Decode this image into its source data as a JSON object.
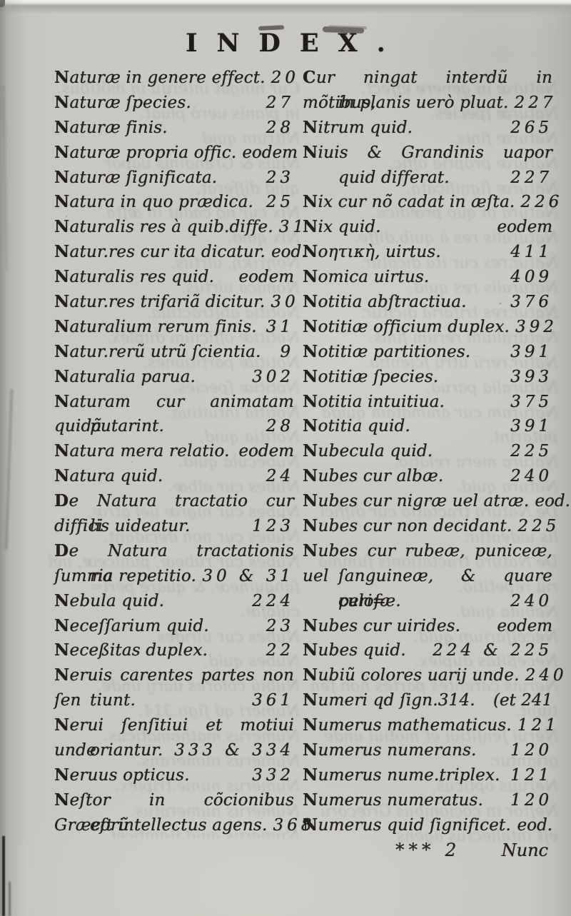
{
  "page": {
    "header": "INDEX.",
    "signature": "*** 2",
    "catchword": "Nunc",
    "colors": {
      "paper": "#c8c7c1",
      "ink": "#24211c"
    },
    "columns": {
      "left": {
        "lines": [
          {
            "text": "Naturæ in genere effect.",
            "page": "20"
          },
          {
            "text": "Naturæ ſpecies.",
            "page": "27"
          },
          {
            "text": "Naturæ finis.",
            "page": "28"
          },
          {
            "text": "Naturæ propria offic.",
            "page": "eodem"
          },
          {
            "text": "Naturæ ſignificata.",
            "page": "23"
          },
          {
            "text": "Natura in quo prædica.",
            "page": "25"
          },
          {
            "text": "Naturalis res à quib.diffe.",
            "page": "31"
          },
          {
            "text": "Natur.res cur ita dicatur.",
            "page": "eod."
          },
          {
            "text": "Naturalis res quid.",
            "page": "eodem"
          },
          {
            "text": "Natur.res trifariã dicitur.",
            "page": "30"
          },
          {
            "text": "Naturalium rerum finis.",
            "page": "31"
          },
          {
            "text": "Natur.rerũ utrũ ſcientia.",
            "page": "9"
          },
          {
            "text": "Naturalia parua.",
            "page": "302"
          },
          {
            "text": "Naturam cur animatam quidã",
            "page": "",
            "justify": true
          },
          {
            "text": "putarint.",
            "page": "28",
            "indent": true
          },
          {
            "text": "Natura mera relatio.",
            "page": "eodem"
          },
          {
            "text": "Natura quid.",
            "page": "24"
          },
          {
            "text": "De Natura tractatio cur diffici",
            "page": "",
            "justify": true
          },
          {
            "text": "lis uideatur.",
            "page": "123",
            "indent": true
          },
          {
            "text": "De Natura tractationis ſumma",
            "page": "",
            "justify": true
          },
          {
            "text": "ria repetitio.",
            "page": "30 & 31",
            "indent": true
          },
          {
            "text": "Nebula quid.",
            "page": "224"
          },
          {
            "text": "Neceſſarium quid.",
            "page": "23"
          },
          {
            "text": "Neceßitas duplex.",
            "page": "22"
          },
          {
            "text": "Neruis carentes partes non ſen",
            "page": "",
            "justify": true
          },
          {
            "text": "tiunt.",
            "page": "361",
            "indent": true
          },
          {
            "text": "Nerui ſenſitiui et motiui unde",
            "page": "",
            "justify": true
          },
          {
            "text": "oriantur.",
            "page": "333 & 334",
            "indent": true
          },
          {
            "text": "Neruus opticus.",
            "page": "332"
          },
          {
            "text": "Neſtor in cõcionibus Græcorũ",
            "page": "",
            "justify": true
          },
          {
            "text": "eſt intellectus agens.",
            "page": "368",
            "indent": true
          }
        ]
      },
      "right": {
        "lines": [
          {
            "text": "Cur ningat interdũ in mõtibus,",
            "page": "",
            "justify": true
          },
          {
            "text": "in planis uerò pluat.",
            "page": "227",
            "indent": true
          },
          {
            "text": "Nitrum quid.",
            "page": "265"
          },
          {
            "text": "Niuis & Grandinis uapor",
            "page": "",
            "justify": true
          },
          {
            "text": "quid differat.",
            "page": "227",
            "indent": true
          },
          {
            "text": "Nix cur nõ cadat in æſta.",
            "page": "226"
          },
          {
            "text": "Nix quid.",
            "page": "eodem"
          },
          {
            "text": "Νοητικὴ, uirtus.",
            "page": "411"
          },
          {
            "text": "Nomica uirtus.",
            "page": "409"
          },
          {
            "text": "Notitia abſtractiua.",
            "page": "376"
          },
          {
            "text": "Notitiæ officium duplex.",
            "page": "392"
          },
          {
            "text": "Notitiæ partitiones.",
            "page": "391"
          },
          {
            "text": "Notitiæ ſpecies.",
            "page": "393"
          },
          {
            "text": "Notitia intuitiua.",
            "page": "375"
          },
          {
            "text": "Notitia quid.",
            "page": "391"
          },
          {
            "text": "Nubecula quid.",
            "page": "225"
          },
          {
            "text": "Nubes cur albæ.",
            "page": "240"
          },
          {
            "text": "Nubes cur nigræ uel atræ.",
            "page": "eod."
          },
          {
            "text": "Nubes cur non decidant.",
            "page": "225"
          },
          {
            "text": "Nubes cur rubeæ, puniceæ, uel",
            "page": "",
            "justify": true
          },
          {
            "text": "ſanguineæ, & quare peri=",
            "page": "",
            "indent": true,
            "justify": true
          },
          {
            "text": "culoſæ.",
            "page": "240",
            "indent": true
          },
          {
            "text": "Nubes cur uirides.",
            "page": "eodem"
          },
          {
            "text": "Nubes quid.",
            "page": "224 & 225"
          },
          {
            "text": "Nubiũ colores uarij unde.",
            "page": "240"
          },
          {
            "text": "Numeri qd ſign.314.",
            "page": "(et 241"
          },
          {
            "text": "Numerus mathematicus.",
            "page": "121"
          },
          {
            "text": "Numerus numerans.",
            "page": "120"
          },
          {
            "text": "Numerus nume.triplex.",
            "page": "121"
          },
          {
            "text": "Numerus numeratus.",
            "page": "120"
          },
          {
            "text": "Numerus quid ſignificet.",
            "page": "eod."
          }
        ]
      }
    }
  }
}
